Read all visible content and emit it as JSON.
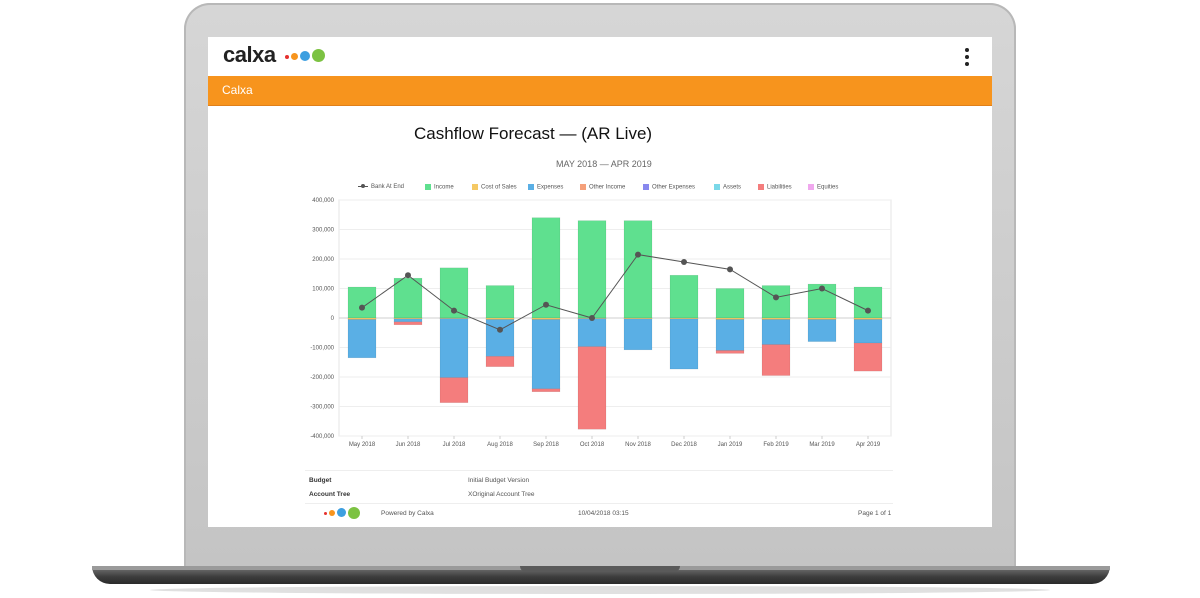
{
  "app": {
    "logo_text": "calxa",
    "brand_colors": {
      "orange_bar": "#f7941d",
      "dot_red": "#e5312f",
      "dot_orange": "#f7941d",
      "dot_blue": "#3d9fe0",
      "dot_green": "#7cc242"
    },
    "menu_icon": "kebab-menu-icon",
    "bar_title": "Calxa"
  },
  "report": {
    "title": "Cashflow Forecast — (AR Live)",
    "subtitle": "MAY 2018 — APR 2019"
  },
  "chart_data": {
    "type": "bar",
    "stacked": true,
    "categories": [
      "May 2018",
      "Jun 2018",
      "Jul 2018",
      "Aug 2018",
      "Sep 2018",
      "Oct 2018",
      "Nov 2018",
      "Dec 2018",
      "Jan 2019",
      "Feb 2019",
      "Mar 2019",
      "Apr 2019"
    ],
    "ylim": [
      -400000,
      400000
    ],
    "yticks": [
      "400,000",
      "300,000",
      "200,000",
      "100,000",
      "0",
      "-100,000",
      "-200,000",
      "-300,000",
      "-400,000"
    ],
    "ytick_values": [
      400000,
      300000,
      200000,
      100000,
      0,
      -100000,
      -200000,
      -300000,
      -400000
    ],
    "grid": true,
    "legend_position": "top",
    "series": [
      {
        "name": "Income",
        "color": "#5fe08f",
        "values": [
          105000,
          135000,
          170000,
          110000,
          340000,
          330000,
          330000,
          145000,
          100000,
          110000,
          115000,
          105000
        ]
      },
      {
        "name": "Cost of Sales",
        "color": "#f5c964",
        "values": [
          -5000,
          -3000,
          -2000,
          -5000,
          -5000,
          -2000,
          -3000,
          -3000,
          -5000,
          -5000,
          -5000,
          -5000
        ]
      },
      {
        "name": "Expenses",
        "color": "#5aafe5",
        "values": [
          -130000,
          -10000,
          -200000,
          -125000,
          -235000,
          -95000,
          -105000,
          -170000,
          -105000,
          -85000,
          -75000,
          -80000
        ]
      },
      {
        "name": "Other Income",
        "color": "#f5a07a",
        "values": [
          0,
          0,
          0,
          0,
          0,
          0,
          0,
          0,
          0,
          0,
          0,
          0
        ]
      },
      {
        "name": "Other Expenses",
        "color": "#8888ee",
        "values": [
          0,
          0,
          0,
          0,
          0,
          0,
          0,
          0,
          0,
          0,
          0,
          0
        ]
      },
      {
        "name": "Assets",
        "color": "#7ad8e8",
        "values": [
          0,
          0,
          0,
          0,
          0,
          0,
          0,
          0,
          0,
          0,
          0,
          0
        ]
      },
      {
        "name": "Liabilities",
        "color": "#f47d7d",
        "values": [
          0,
          -10000,
          -85000,
          -35000,
          -10000,
          -280000,
          0,
          0,
          -10000,
          -105000,
          0,
          -95000
        ]
      },
      {
        "name": "Equities",
        "color": "#f0a8ee",
        "values": [
          0,
          0,
          0,
          0,
          0,
          0,
          0,
          0,
          0,
          0,
          0,
          0
        ]
      }
    ],
    "line": {
      "name": "Bank At End",
      "color": "#555555",
      "values": [
        35000,
        145000,
        25000,
        -40000,
        45000,
        0,
        215000,
        190000,
        165000,
        70000,
        100000,
        25000
      ]
    }
  },
  "footer": {
    "budget_label": "Budget",
    "budget_value": "Initial Budget Version",
    "account_tree_label": "Account Tree",
    "account_tree_value": "XOriginal Account Tree",
    "powered_by": "Powered by Calxa",
    "timestamp": "10/04/2018 03:15",
    "page": "Page 1 of 1"
  }
}
